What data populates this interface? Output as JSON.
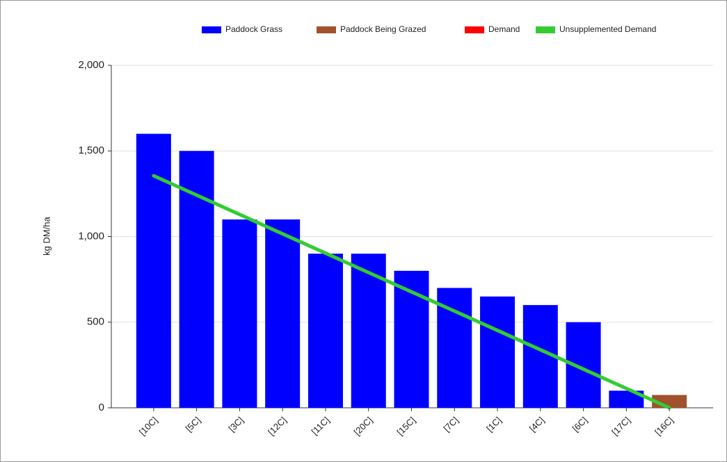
{
  "chart_data": {
    "type": "bar",
    "y_label": "kg DM/ha",
    "categories": [
      "[10C]",
      "[5C]",
      "[3C]",
      "[12C]",
      "[11C]",
      "[20C]",
      "[15C]",
      "[7C]",
      "[1C]",
      "[4C]",
      "[6C]",
      "[17C]",
      "[16C]"
    ],
    "series": [
      {
        "name": "Paddock Grass",
        "color": "#0000ff",
        "type": "bar",
        "values": [
          1600,
          1500,
          1100,
          1100,
          900,
          900,
          800,
          700,
          650,
          600,
          500,
          100,
          null
        ]
      },
      {
        "name": "Paddock Being Grazed",
        "color": "#a0522d",
        "type": "bar",
        "values": [
          null,
          null,
          null,
          null,
          null,
          null,
          null,
          null,
          null,
          null,
          null,
          null,
          75
        ]
      },
      {
        "name": "Demand",
        "color": "#ff0000",
        "type": "bar",
        "values": [
          null,
          null,
          null,
          null,
          null,
          null,
          null,
          null,
          null,
          null,
          null,
          null,
          null
        ]
      },
      {
        "name": "Unsupplemented Demand",
        "color": "#33cc33",
        "type": "line",
        "values": [
          1355,
          1242,
          1129,
          1016,
          903,
          790,
          677,
          565,
          452,
          339,
          226,
          113,
          0
        ]
      }
    ],
    "ylim": [
      0,
      2000
    ],
    "yticks": [
      0,
      {
        "value": 500,
        "label": "500"
      },
      {
        "value": 1000,
        "label": "1,000"
      },
      {
        "value": 1500,
        "label": "1,500"
      },
      {
        "value": 2000,
        "label": "2,000"
      }
    ],
    "grid": true,
    "legend": "top"
  }
}
